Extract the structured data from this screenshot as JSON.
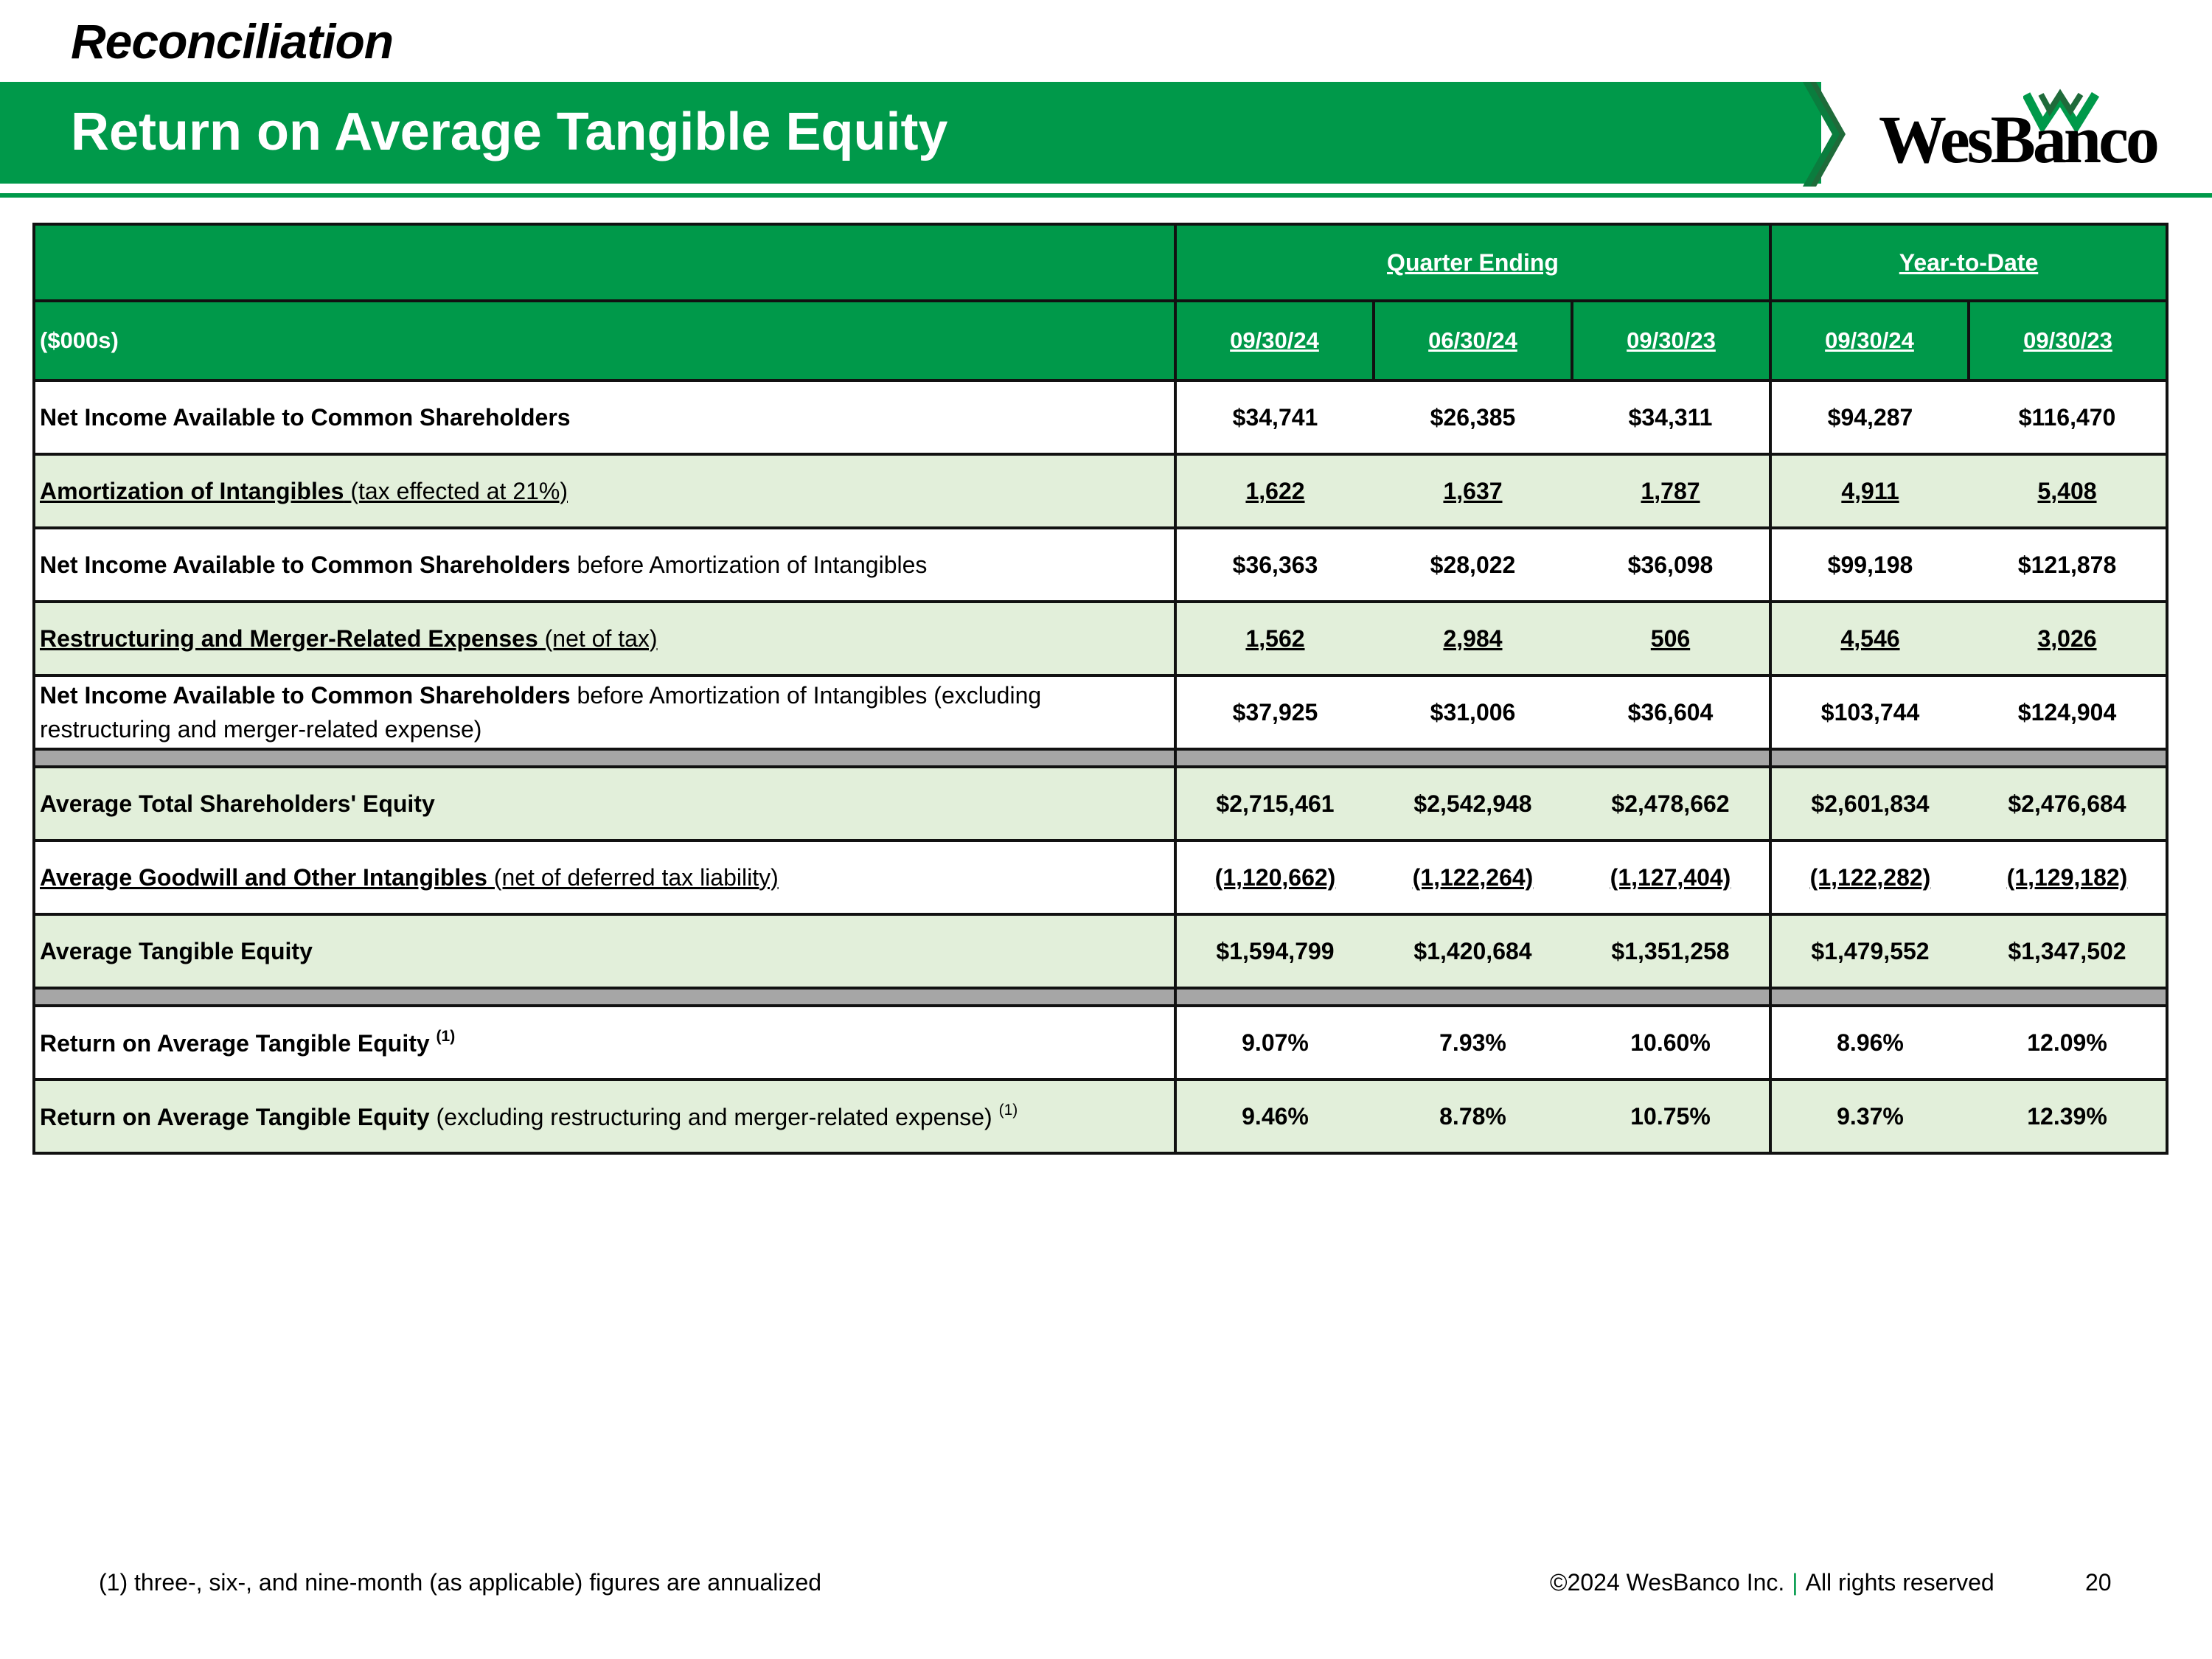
{
  "header": {
    "kicker": "Reconciliation",
    "title": "Return on Average Tangible Equity",
    "logo_text": "WesBanco",
    "brand_color": "#00994a"
  },
  "table": {
    "units_label": "($000s)",
    "group_quarter": "Quarter Ending",
    "group_ytd": "Year-to-Date",
    "columns": [
      "09/30/24",
      "06/30/24",
      "09/30/23",
      "09/30/24",
      "09/30/23"
    ],
    "rows": [
      {
        "bold": "Net Income Available to Common Shareholders",
        "rest": "",
        "sup": "",
        "values": [
          "$34,741",
          "$26,385",
          "$34,311",
          "$94,287",
          "$116,470"
        ]
      },
      {
        "bold": "Amortization of Intangibles",
        "rest": " (tax effected at 21%)",
        "sup": "",
        "values": [
          "1,622",
          "1,637",
          "1,787",
          "4,911",
          "5,408"
        ]
      },
      {
        "bold": "Net Income Available to Common Shareholders",
        "rest": " before Amortization of Intangibles",
        "sup": "",
        "values": [
          "$36,363",
          "$28,022",
          "$36,098",
          "$99,198",
          "$121,878"
        ]
      },
      {
        "bold": "Restructuring and Merger-Related Expenses",
        "rest": " (net of tax)",
        "sup": "",
        "values": [
          "1,562",
          "2,984",
          "506",
          "4,546",
          "3,026"
        ]
      },
      {
        "bold": "Net Income Available to Common Shareholders",
        "rest": " before Amortization of Intangibles (excluding restructuring and merger-related expense)",
        "sup": "",
        "values": [
          "$37,925",
          "$31,006",
          "$36,604",
          "$103,744",
          "$124,904"
        ]
      },
      {
        "bold": "Average Total Shareholders' Equity",
        "rest": "",
        "sup": "",
        "values": [
          "$2,715,461",
          "$2,542,948",
          "$2,478,662",
          "$2,601,834",
          "$2,476,684"
        ]
      },
      {
        "bold": "Average Goodwill and Other Intangibles",
        "rest": " (net of deferred tax liability)",
        "sup": "",
        "values": [
          "(1,120,662)",
          "(1,122,264)",
          "(1,127,404)",
          "(1,122,282)",
          "(1,129,182)"
        ]
      },
      {
        "bold": "Average Tangible Equity",
        "rest": "",
        "sup": "",
        "values": [
          "$1,594,799",
          "$1,420,684",
          "$1,351,258",
          "$1,479,552",
          "$1,347,502"
        ]
      },
      {
        "bold": "Return on Average Tangible Equity",
        "rest": " ",
        "sup": "(1)",
        "values": [
          "9.07%",
          "7.93%",
          "10.60%",
          "8.96%",
          "12.09%"
        ]
      },
      {
        "bold": "Return on Average Tangible Equity",
        "rest": " (excluding restructuring and merger-related expense) ",
        "sup": "(1)",
        "values": [
          "9.46%",
          "8.78%",
          "10.75%",
          "9.37%",
          "12.39%"
        ]
      }
    ]
  },
  "footer": {
    "footnote": "(1) three-, six-, and nine-month (as applicable) figures are annualized",
    "copyright": "©2024 WesBanco Inc.",
    "separator": "|",
    "rights": "All rights reserved",
    "page_number": "20"
  }
}
